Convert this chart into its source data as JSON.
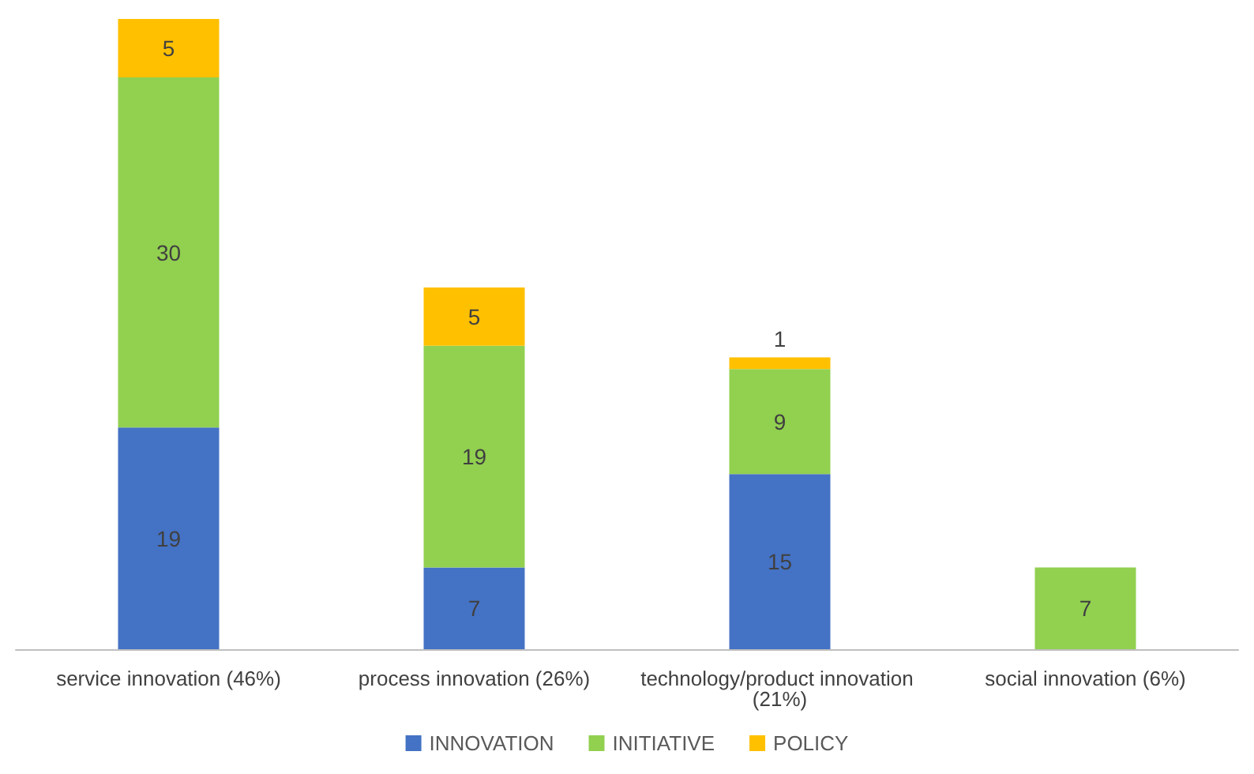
{
  "chart_data": {
    "type": "bar",
    "stacked": true,
    "data_labels": true,
    "legend": "bottom",
    "categories": [
      "service innovation (46%)",
      "process innovation (26%)",
      "technology/product innovation (21%)",
      "social innovation (6%)"
    ],
    "series": [
      {
        "name": "INNOVATION",
        "color": "#4472c4",
        "values": [
          19,
          7,
          15,
          null
        ]
      },
      {
        "name": "INITIATIVE",
        "color": "#92d050",
        "values": [
          30,
          19,
          9,
          7
        ]
      },
      {
        "name": "POLICY",
        "color": "#ffc000",
        "values": [
          5,
          5,
          1,
          null
        ]
      }
    ]
  }
}
